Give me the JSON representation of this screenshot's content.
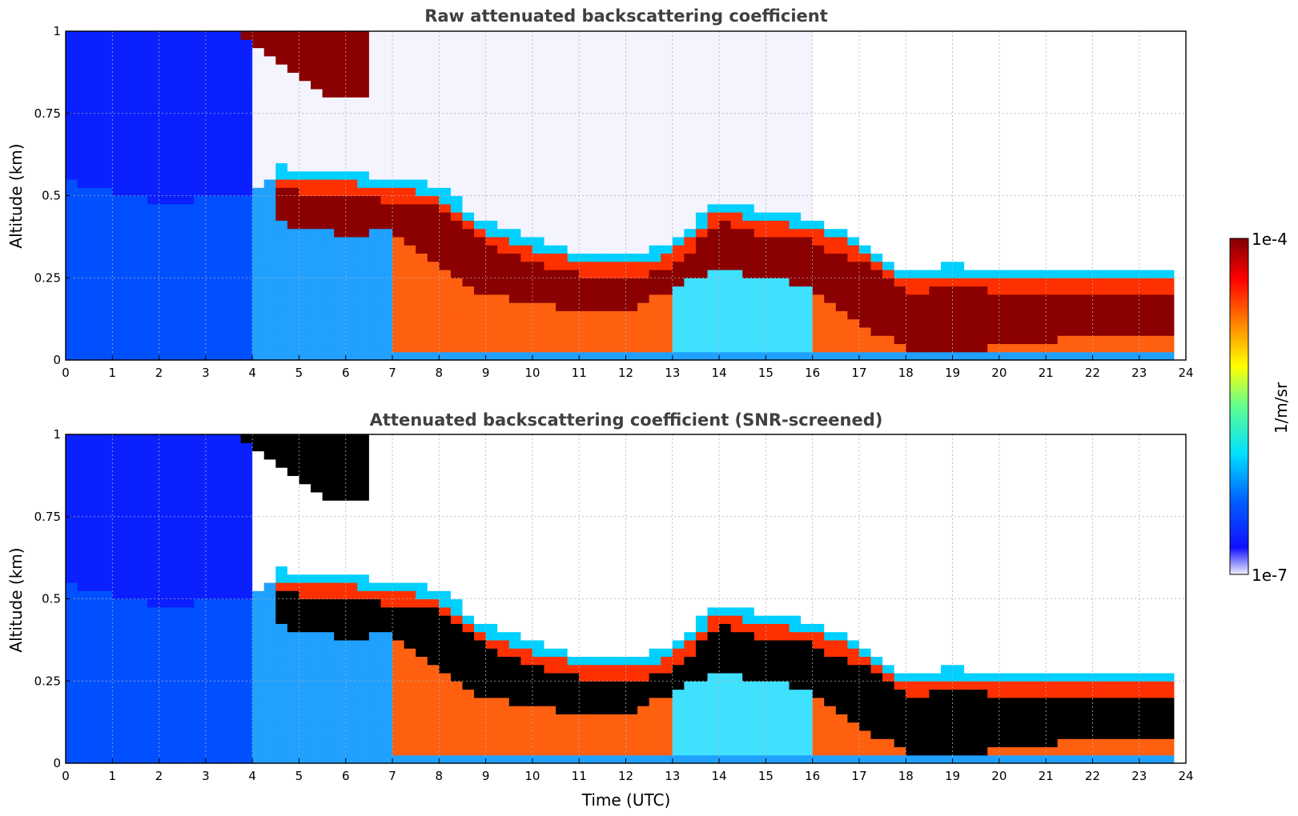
{
  "chart_data": [
    {
      "type": "heatmap",
      "title": "Raw attenuated backscattering coefficient",
      "xlabel": "",
      "ylabel": "Altitude (km)",
      "xlim": [
        0,
        24
      ],
      "ylim": [
        0,
        1
      ],
      "xticks": [
        "0",
        "1",
        "2",
        "3",
        "4",
        "5",
        "6",
        "7",
        "8",
        "9",
        "10",
        "11",
        "12",
        "13",
        "14",
        "15",
        "16",
        "17",
        "18",
        "19",
        "20",
        "21",
        "22",
        "23",
        "24"
      ],
      "yticks": [
        "0",
        "0.25",
        "0.5",
        "0.75",
        "1"
      ],
      "grid": true,
      "features": {
        "aerosol_layer_top_km": {
          "x": [
            0,
            2,
            4,
            4.5,
            6,
            7,
            8,
            9,
            10,
            11,
            12,
            13,
            14,
            15,
            16,
            17,
            18,
            19,
            20,
            21,
            22,
            23,
            23.8
          ],
          "y": [
            0.55,
            0.48,
            0.5,
            0.55,
            0.55,
            0.55,
            0.5,
            0.42,
            0.35,
            0.3,
            0.3,
            0.35,
            0.48,
            0.42,
            0.42,
            0.35,
            0.22,
            0.27,
            0.25,
            0.24,
            0.24,
            0.24,
            0.24
          ]
        },
        "cloud_layer_top_km": {
          "x": [
            4.5,
            6,
            7,
            8,
            9,
            10,
            11,
            12,
            13,
            14,
            15,
            16,
            17,
            18,
            19,
            20,
            21,
            22,
            23,
            23.8
          ],
          "y": [
            0.52,
            0.5,
            0.48,
            0.46,
            0.35,
            0.3,
            0.26,
            0.25,
            0.28,
            0.42,
            0.38,
            0.36,
            0.3,
            0.2,
            0.22,
            0.21,
            0.2,
            0.2,
            0.2,
            0.2
          ]
        },
        "cloud_layer_base_km": {
          "x": [
            4.5,
            6,
            7,
            8,
            9,
            10,
            11,
            12,
            13,
            14,
            15,
            16,
            17,
            18,
            19,
            20,
            21,
            22,
            23,
            23.8
          ],
          "y": [
            0.42,
            0.38,
            0.4,
            0.28,
            0.2,
            0.18,
            0.15,
            0.15,
            0.22,
            0.28,
            0.25,
            0.22,
            0.12,
            0.03,
            0.03,
            0.04,
            0.06,
            0.07,
            0.08,
            0.08
          ]
        }
      }
    },
    {
      "type": "heatmap",
      "title": "Attenuated backscattering coefficient (SNR-screened)",
      "xlabel": "Time (UTC)",
      "ylabel": "Altitude (km)",
      "xlim": [
        0,
        24
      ],
      "ylim": [
        0,
        1
      ],
      "xticks": [
        "0",
        "1",
        "2",
        "3",
        "4",
        "5",
        "6",
        "7",
        "8",
        "9",
        "10",
        "11",
        "12",
        "13",
        "14",
        "15",
        "16",
        "17",
        "18",
        "19",
        "20",
        "21",
        "22",
        "23",
        "24"
      ],
      "yticks": [
        "0",
        "0.25",
        "0.5",
        "0.75",
        "1"
      ],
      "grid": true
    }
  ],
  "colorbar": {
    "max_label": "1e-4",
    "min_label": "1e-7",
    "unit_label": "1/m/sr",
    "colormap": "jet",
    "colors": [
      "#f0f0ff",
      "#1010ff",
      "#0080ff",
      "#00e0ff",
      "#80ff80",
      "#ffff00",
      "#ff8000",
      "#ff0000",
      "#800000"
    ]
  }
}
